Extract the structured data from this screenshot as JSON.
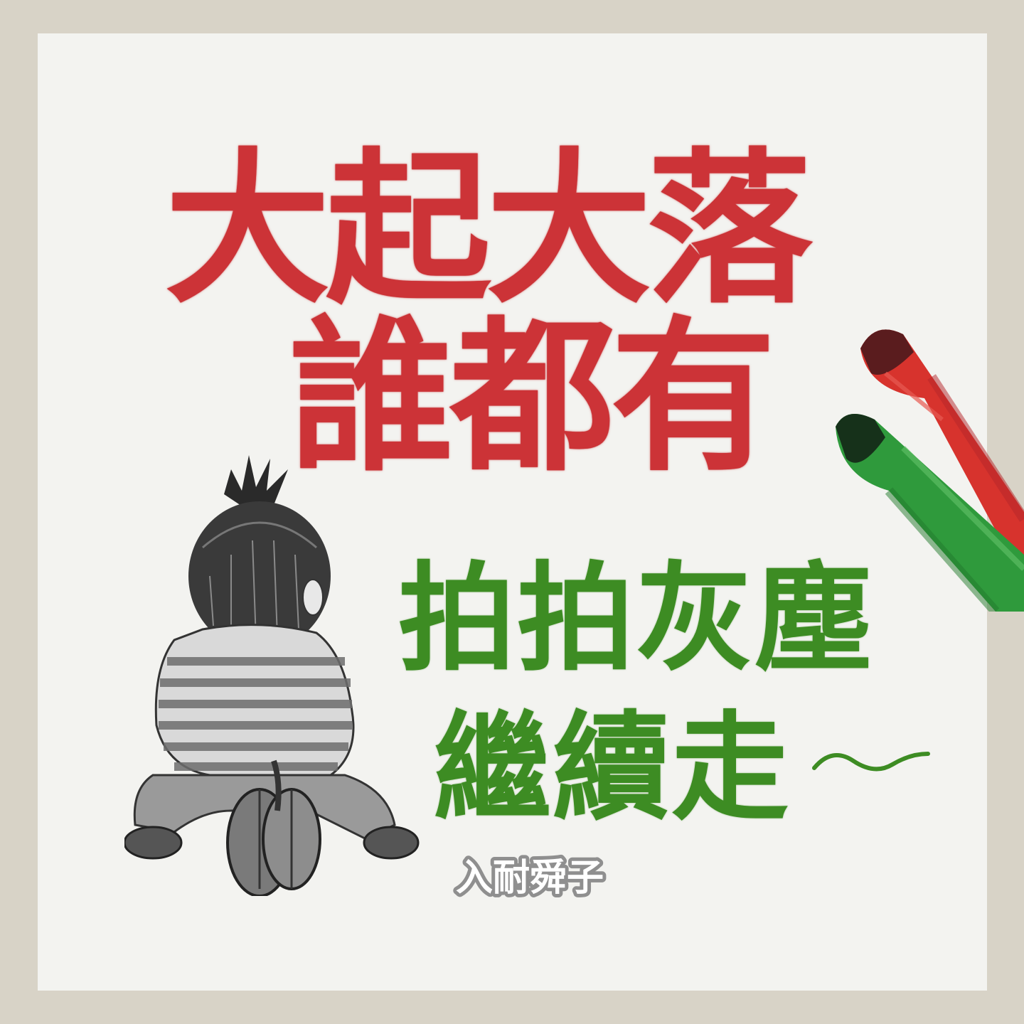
{
  "headline": {
    "line1": "大起大落",
    "line2": "誰都有",
    "color": "#cc3337"
  },
  "subline": {
    "line1": "拍拍灰塵",
    "line2": "繼續走",
    "color": "#3d8c23"
  },
  "logo": {
    "text": "入耐舜子",
    "color": "#8f8f8f"
  },
  "colors": {
    "frame": "#d8d3c7",
    "paper": "#f3f3f0",
    "red_marker": "#d7332d",
    "green_marker": "#2f9a3c"
  },
  "illustration": {
    "subject": "child-on-balance-bike-icon",
    "props": [
      "red-marker-icon",
      "green-marker-icon"
    ]
  }
}
